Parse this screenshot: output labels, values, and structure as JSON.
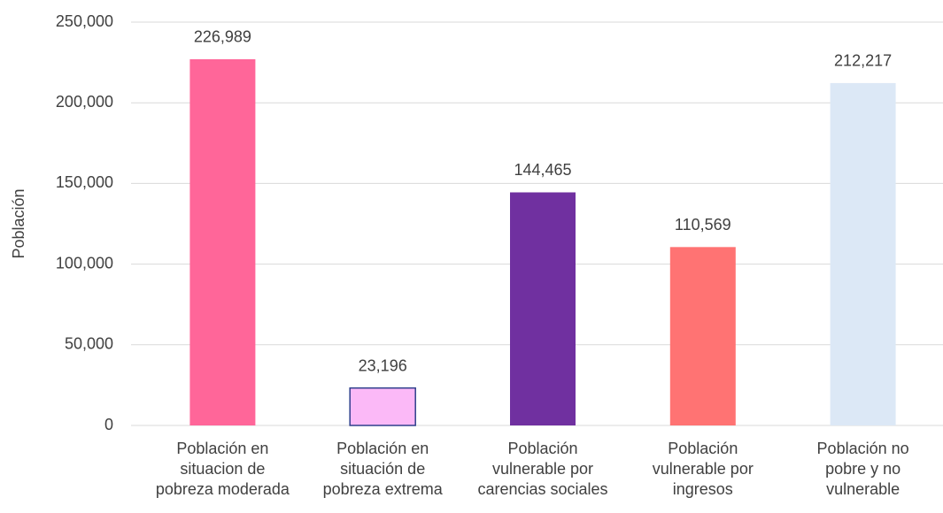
{
  "chart_data": {
    "type": "bar",
    "y_label": "Población",
    "categories": [
      "Población en\nsituacion de\npobreza moderada",
      "Población en\nsituación de\npobreza extrema",
      "Población\nvulnerable por\ncarencias sociales",
      "Población\nvulnerable por\ningresos",
      "Población no\npobre y no\nvulnerable"
    ],
    "values": [
      226989,
      23196,
      144465,
      110569,
      212217
    ],
    "value_labels": [
      "226,989",
      "23,196",
      "144,465",
      "110,569",
      "212,217"
    ],
    "colors": [
      "#ff6699",
      "#fbb9f7",
      "#7030a0",
      "#ff7373",
      "#dce8f6"
    ],
    "edge_colors": [
      null,
      "#2e3f8c",
      null,
      null,
      null
    ],
    "ylim": [
      0,
      250000
    ],
    "yticks": [
      0,
      {
        "value": 50000,
        "label": "50,000"
      },
      {
        "value": 100000,
        "label": "100,000"
      },
      {
        "value": 150000,
        "label": "150,000"
      },
      {
        "value": 200000,
        "label": "200,000"
      },
      {
        "value": 250000,
        "label": "250,000"
      }
    ],
    "grid": true
  }
}
